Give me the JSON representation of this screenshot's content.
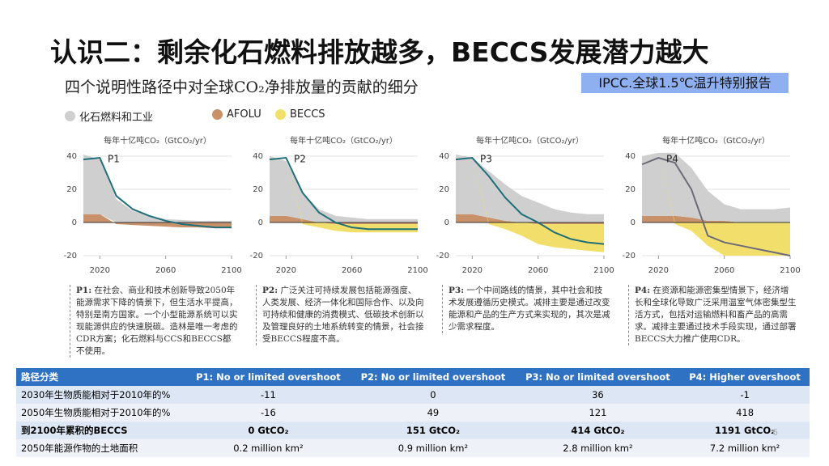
{
  "header": {
    "title": "认识二：剩余化石燃料排放越多，BECCS发展潜力越大",
    "subtitle": "四个说明性路径中对全球CO₂净排放量的贡献的细分",
    "source": "IPCC.全球1.5℃温升特别报告"
  },
  "chart_data": [
    {
      "type": "area",
      "title": "P1",
      "y_label": "每年十亿吨CO₂（GtCO₂/yr）",
      "x": [
        2010,
        2020,
        2030,
        2040,
        2050,
        2060,
        2070,
        2080,
        2090,
        2100
      ],
      "xlim": [
        2010,
        2100
      ],
      "xticks": [
        2020,
        2060,
        2100
      ],
      "ylim": [
        -20,
        40
      ],
      "yticks": [
        -20,
        0,
        20,
        40
      ],
      "series": [
        {
          "name": "AFOLU",
          "color": "#c9916a",
          "values": [
            5,
            5,
            -1,
            -1.5,
            -2,
            -2.5,
            -3,
            -3,
            -3.5,
            -3.5
          ]
        },
        {
          "name": "化石燃料和工业",
          "color": "#cfcfcf",
          "values": [
            36,
            33,
            14,
            7,
            4,
            2,
            1.5,
            1,
            1,
            1
          ]
        },
        {
          "name": "BECCS",
          "color": "#f2df6b",
          "values": [
            0,
            0,
            0,
            0,
            0,
            0,
            0,
            0,
            0,
            0
          ]
        }
      ],
      "net": {
        "color": "#1f6f78",
        "values": [
          38,
          39,
          16,
          8,
          4,
          1,
          -1,
          -2,
          -3,
          -3
        ]
      }
    },
    {
      "type": "area",
      "title": "P2",
      "y_label": "每年十亿吨CO₂（GtCO₂/yr）",
      "x": [
        2010,
        2020,
        2030,
        2040,
        2050,
        2060,
        2070,
        2080,
        2090,
        2100
      ],
      "xlim": [
        2010,
        2100
      ],
      "xticks": [
        2020,
        2060,
        2100
      ],
      "ylim": [
        -20,
        40
      ],
      "yticks": [
        -20,
        0,
        20,
        40
      ],
      "series": [
        {
          "color": "#c9916a",
          "values": [
            4,
            4,
            2,
            0,
            -1,
            -1,
            -1,
            -1,
            -1,
            -1
          ]
        },
        {
          "color": "#cfcfcf",
          "values": [
            36,
            33,
            16,
            8,
            4,
            3,
            2,
            2,
            2,
            2
          ]
        },
        {
          "color": "#f2df6b",
          "values": [
            0,
            0,
            -1,
            -3,
            -4,
            -5,
            -5,
            -5,
            -5,
            -5
          ]
        }
      ],
      "net": {
        "color": "#1f6f78",
        "values": [
          38,
          39,
          18,
          6,
          0,
          -3,
          -4,
          -4,
          -4,
          -4
        ]
      }
    },
    {
      "type": "area",
      "title": "P3",
      "y_label": "每年十亿吨CO₂（GtCO₂/yr）",
      "x": [
        2010,
        2020,
        2030,
        2040,
        2050,
        2060,
        2070,
        2080,
        2090,
        2100
      ],
      "xlim": [
        2010,
        2100
      ],
      "xticks": [
        2020,
        2060,
        2100
      ],
      "ylim": [
        -20,
        40
      ],
      "yticks": [
        -20,
        0,
        20,
        40
      ],
      "series": [
        {
          "color": "#c9916a",
          "values": [
            5,
            5,
            3,
            1,
            0,
            -1,
            -1,
            -1,
            -1,
            -1
          ]
        },
        {
          "color": "#cfcfcf",
          "values": [
            36,
            34,
            28,
            22,
            16,
            12,
            8,
            6,
            5,
            5
          ]
        },
        {
          "color": "#f2df6b",
          "values": [
            0,
            0,
            -1,
            -4,
            -8,
            -12,
            -14,
            -15,
            -16,
            -17
          ]
        }
      ],
      "net": {
        "color": "#1f6f78",
        "values": [
          38,
          39,
          28,
          15,
          5,
          0,
          -6,
          -10,
          -12,
          -13
        ]
      }
    },
    {
      "type": "area",
      "title": "P4",
      "y_label": "每年十亿吨CO₂（GtCO₂/yr）",
      "x": [
        2010,
        2020,
        2030,
        2040,
        2050,
        2060,
        2070,
        2080,
        2090,
        2100
      ],
      "xlim": [
        2010,
        2100
      ],
      "xticks": [
        2020,
        2060,
        2100
      ],
      "ylim": [
        -20,
        40
      ],
      "yticks": [
        -20,
        0,
        20,
        40
      ],
      "series": [
        {
          "color": "#c9916a",
          "values": [
            4,
            4,
            4,
            3,
            1,
            1,
            0,
            0,
            0,
            0
          ]
        },
        {
          "color": "#cfcfcf",
          "values": [
            36,
            38,
            38,
            30,
            18,
            10,
            8,
            8,
            8,
            9
          ]
        },
        {
          "color": "#f2df6b",
          "values": [
            0,
            0,
            -1,
            -5,
            -14,
            -20,
            -20,
            -20,
            -20,
            -20
          ]
        }
      ],
      "net": {
        "color": "#6b6b78",
        "values": [
          35,
          39,
          36,
          20,
          -8,
          -12,
          -14,
          -16,
          -18,
          -20
        ]
      }
    }
  ],
  "descriptions": [
    {
      "label": "P1:",
      "text": "在社会、商业和技术创新导致2050年能源需求下降的情景下，但生活水平提高，特别是南方国家。一个小型能源系统可以实现能源供应的快速脱碳。造林是唯一考虑的CDR方案；化石燃料与CCS和BECCS都不使用。"
    },
    {
      "label": "P2:",
      "text": "广泛关注可持续发展包括能源强度、人类发展、经济一体化和国际合作、以及向可持续和健康的消费模式、低碳技术创新以及管理良好的土地系统转变的情景，社会接受BECCS程度不高。"
    },
    {
      "label": "P3:",
      "text": "一个中间路线的情景，其中社会和技术发展遵循历史模式。减排主要是通过改变能源和产品的生产方式来实现的，其次是减少需求程度。"
    },
    {
      "label": "P4:",
      "text": "在资源和能源密集型情景下，经济增长和全球化导致广泛采用温室气体密集型生活方式，包括对运输燃料和畜产品的高需求。减排主要通过技术手段实现，通过部署BECCS大力推广使用CDR。"
    }
  ],
  "table": {
    "header": [
      "路径分类",
      "P1: No or limited overshoot",
      "P2: No or limited overshoot",
      "P3: No or limited overshoot",
      "P4: Higher overshoot"
    ],
    "rows": [
      [
        "2030年生物质能相对于2010年的%",
        -11,
        0,
        36,
        -1
      ],
      [
        "2050年生物质能相对于2010年的%",
        -16,
        49,
        121,
        418
      ],
      [
        "到2100年累积的BECCS",
        "0 GtCO₂",
        "151 GtCO₂",
        "414 GtCO₂",
        "1191 GtCO₂"
      ],
      [
        "2050年能源作物的土地面积",
        "0.2 million km²",
        "0.9 million km²",
        "2.8 million km²",
        "7.2 million km²"
      ]
    ]
  },
  "page_number": 6
}
